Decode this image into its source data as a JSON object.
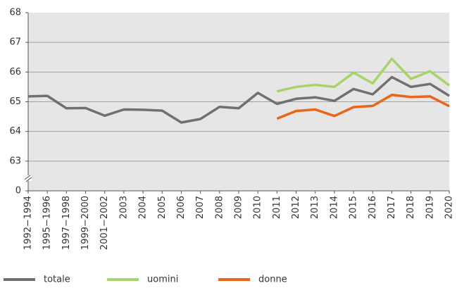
{
  "chart_data": {
    "type": "line",
    "categories": [
      "1992−1994",
      "1995−1996",
      "1997−1998",
      "1999−2000",
      "2001−2002",
      "2003",
      "2004",
      "2005",
      "2006",
      "2007",
      "2008",
      "2009",
      "2010",
      "2011",
      "2012",
      "2013",
      "2014",
      "2015",
      "2016",
      "2017",
      "2018",
      "2019",
      "2020"
    ],
    "series": [
      {
        "name": "totale",
        "color": "#707070",
        "values": [
          65.18,
          65.2,
          64.78,
          64.79,
          64.53,
          64.74,
          64.73,
          64.7,
          64.3,
          64.42,
          64.83,
          64.78,
          65.3,
          64.93,
          65.1,
          65.15,
          65.03,
          65.43,
          65.25,
          65.83,
          65.5,
          65.6,
          65.2
        ]
      },
      {
        "name": "uomini",
        "color": "#a8d36a",
        "values": [
          null,
          null,
          null,
          null,
          null,
          null,
          null,
          null,
          null,
          null,
          null,
          null,
          null,
          65.35,
          65.5,
          65.57,
          65.5,
          65.98,
          65.62,
          66.45,
          65.77,
          66.03,
          65.55
        ]
      },
      {
        "name": "donne",
        "color": "#e8661a",
        "values": [
          null,
          null,
          null,
          null,
          null,
          null,
          null,
          null,
          null,
          null,
          null,
          null,
          null,
          64.43,
          64.69,
          64.74,
          64.52,
          64.82,
          64.86,
          65.23,
          65.16,
          65.18,
          64.85
        ]
      }
    ],
    "ylim": [
      0,
      68
    ],
    "yticks": [
      0,
      63,
      64,
      65,
      66,
      67,
      68
    ],
    "broken_axis": true,
    "grid": true
  }
}
